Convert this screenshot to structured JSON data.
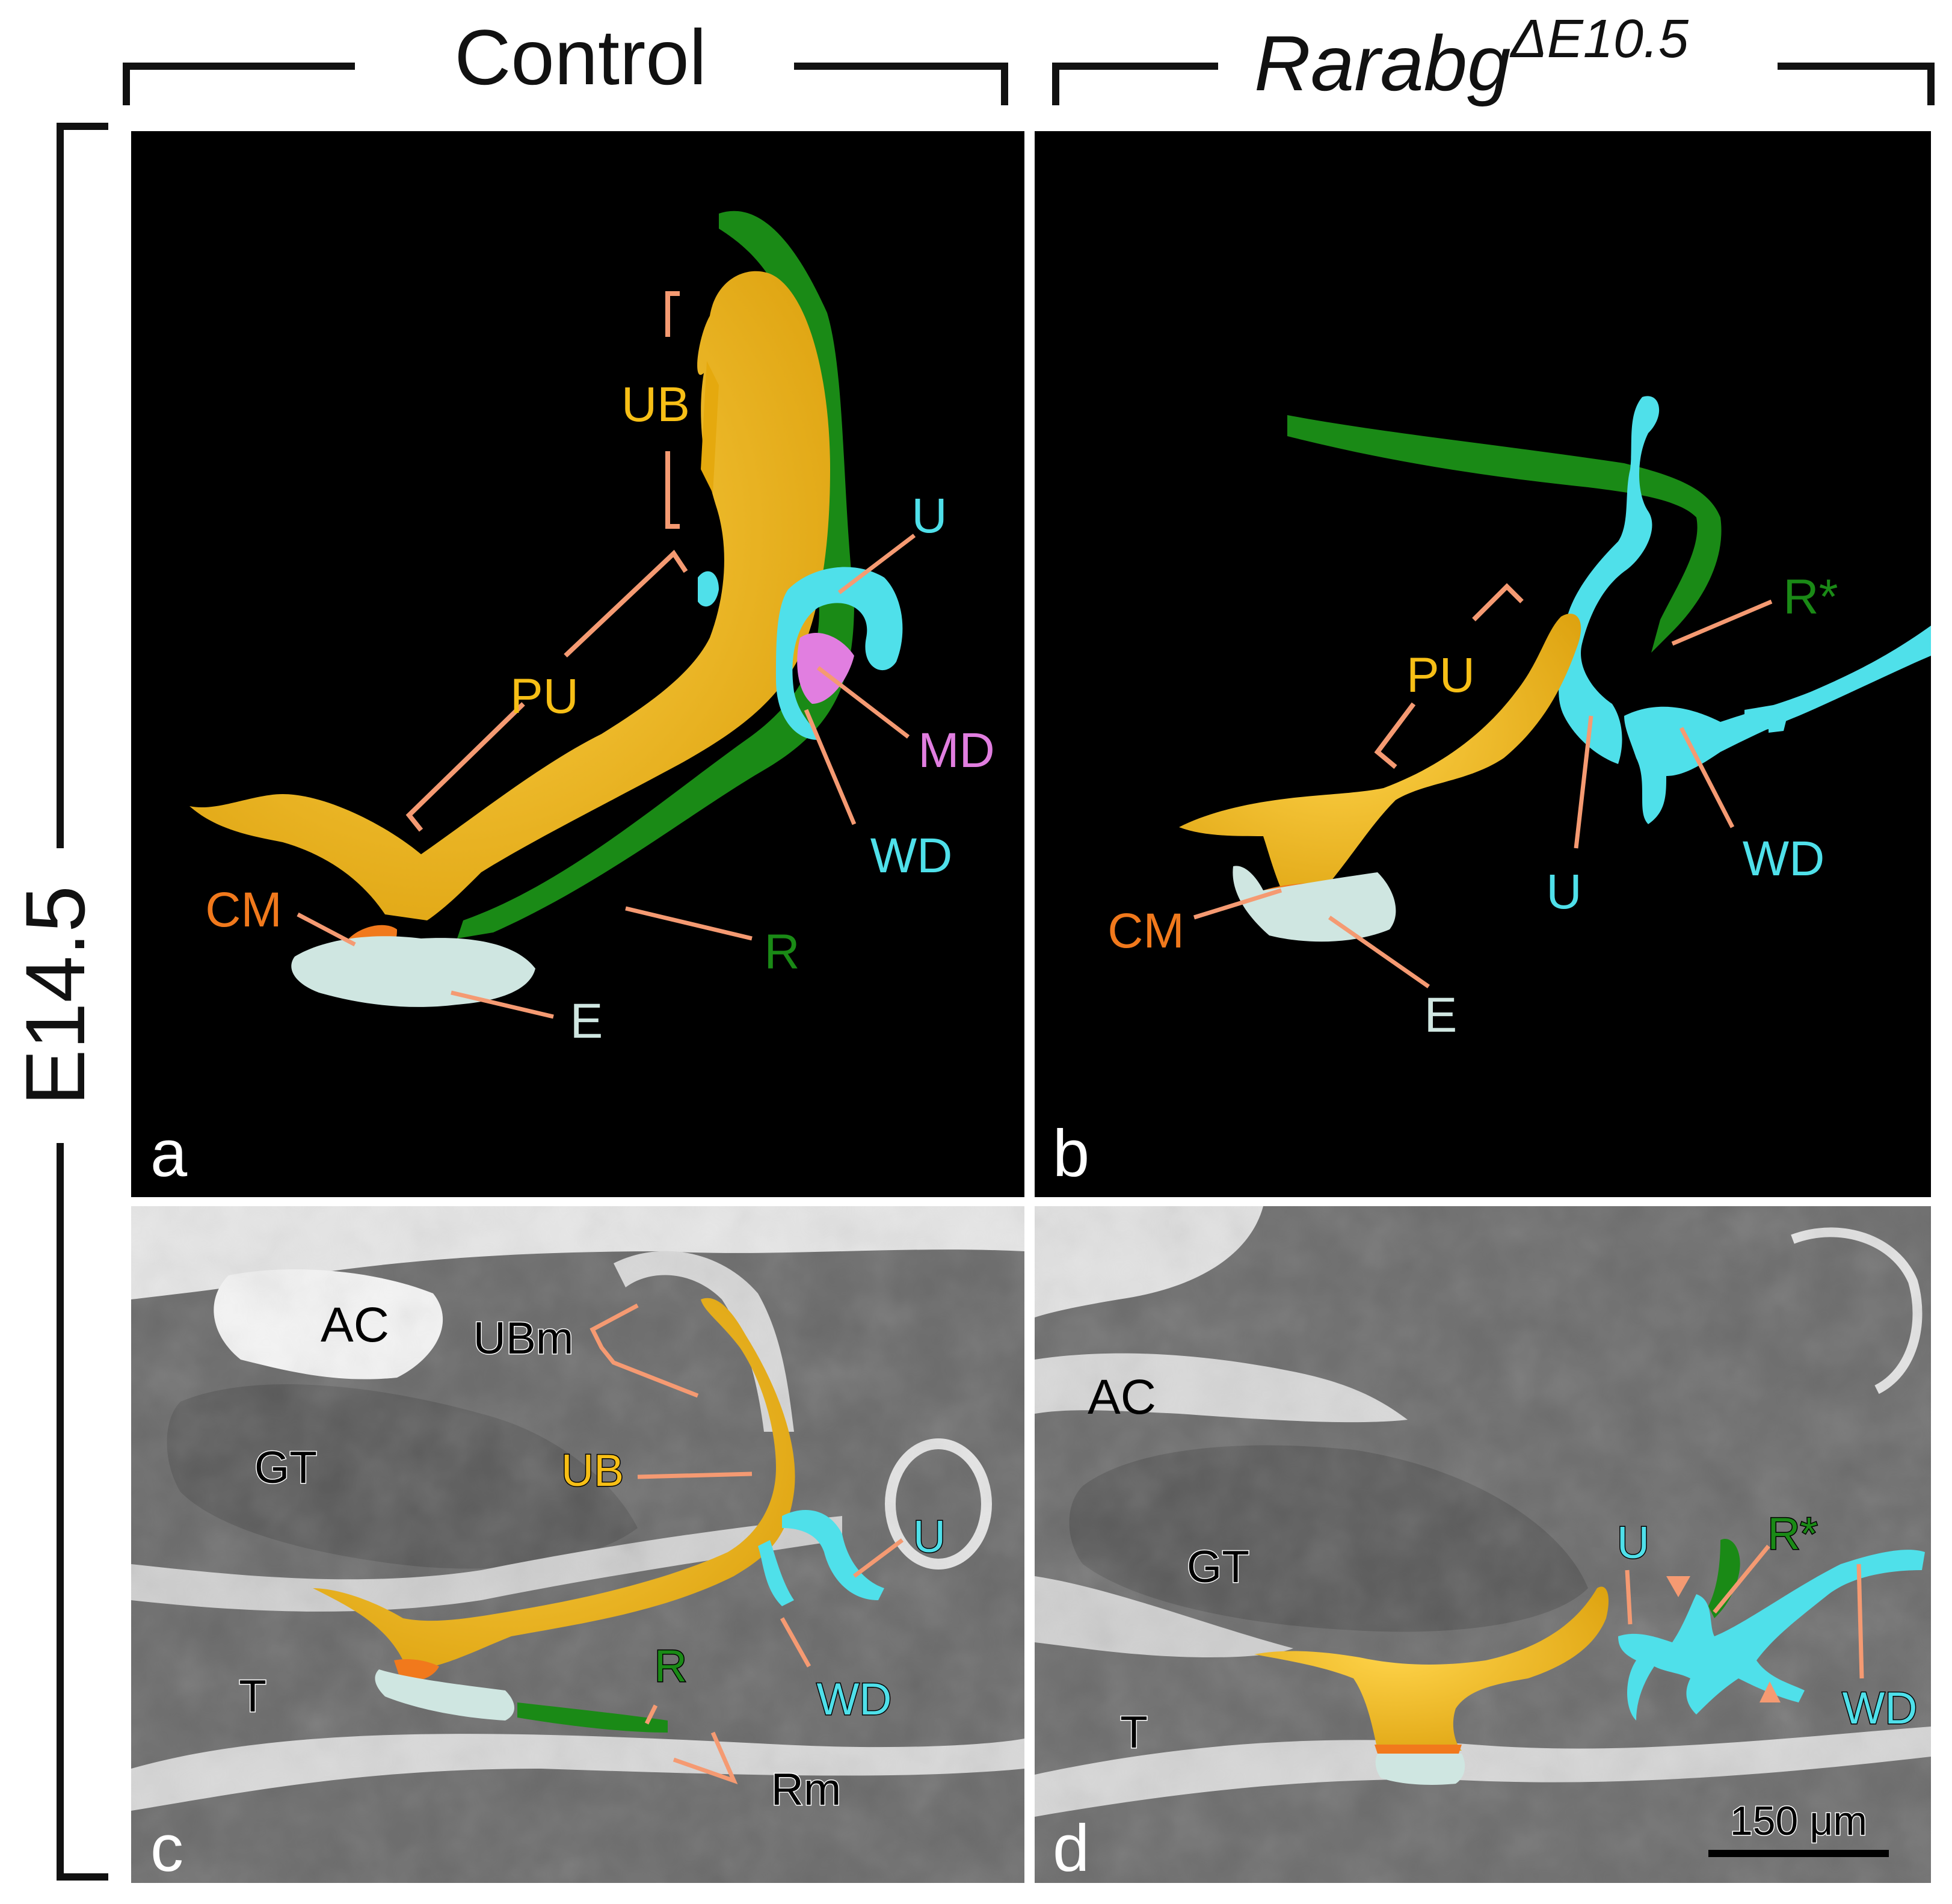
{
  "header": {
    "control": "Control",
    "mutant_base": "Rarabg",
    "mutant_sup": "ΔE10.5"
  },
  "side_label": "E14.5",
  "panels": {
    "a": {
      "letter": "a",
      "labels": {
        "UB": "UB",
        "U": "U",
        "PU": "PU",
        "MD": "MD",
        "WD": "WD",
        "CM": "CM",
        "R": "R",
        "E": "E"
      }
    },
    "b": {
      "letter": "b",
      "labels": {
        "R_star": "R*",
        "PU": "PU",
        "CM": "CM",
        "U": "U",
        "WD": "WD",
        "E": "E"
      }
    },
    "c": {
      "letter": "c",
      "labels": {
        "AC": "AC",
        "UBm": "UBm",
        "GT": "GT",
        "UB": "UB",
        "U": "U",
        "T": "T",
        "R": "R",
        "WD": "WD",
        "Rm": "Rm"
      }
    },
    "d": {
      "letter": "d",
      "labels": {
        "AC": "AC",
        "GT": "GT",
        "U": "U",
        "R_star": "R*",
        "T": "T",
        "WD": "WD"
      },
      "scale_bar": "150 μm"
    }
  },
  "colors": {
    "ureteric_bud": "#f7bf16",
    "wolffian_duct": "#4fe0ea",
    "rectum": "#1a8a16",
    "mullerian_duct": "#e17ee0",
    "cloacal_membrane": "#f1791c",
    "epithelium": "#cfe6e1",
    "leader_line": "#f59a72",
    "label_orange": "#f59a3c",
    "label_white": "#ffffff"
  }
}
